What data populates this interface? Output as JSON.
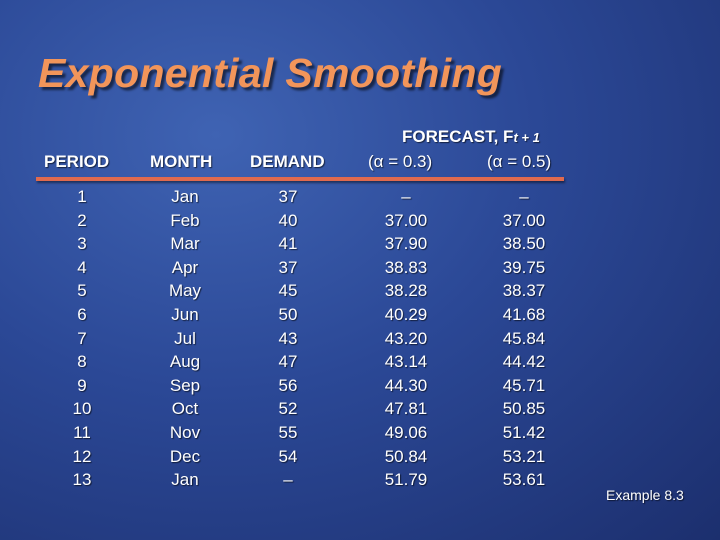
{
  "slide": {
    "title": "Exponential Smoothing",
    "footnote": "Example 8.3"
  },
  "table": {
    "headers": {
      "period": "PERIOD",
      "month": "MONTH",
      "demand": "DEMAND",
      "forecast_main": "FORECAST, F",
      "forecast_sub": "t + 1",
      "alpha_03": "(α = 0.3)",
      "alpha_05": "(α = 0.5)"
    },
    "rows": [
      {
        "period": "1",
        "month": "Jan",
        "demand": "37",
        "alpha_03": "–",
        "alpha_05": "–"
      },
      {
        "period": "2",
        "month": "Feb",
        "demand": "40",
        "alpha_03": "37.00",
        "alpha_05": "37.00"
      },
      {
        "period": "3",
        "month": "Mar",
        "demand": "41",
        "alpha_03": "37.90",
        "alpha_05": "38.50"
      },
      {
        "period": "4",
        "month": "Apr",
        "demand": "37",
        "alpha_03": "38.83",
        "alpha_05": "39.75"
      },
      {
        "period": "5",
        "month": "May",
        "demand": "45",
        "alpha_03": "38.28",
        "alpha_05": "38.37"
      },
      {
        "period": "6",
        "month": "Jun",
        "demand": "50",
        "alpha_03": "40.29",
        "alpha_05": "41.68"
      },
      {
        "period": "7",
        "month": "Jul",
        "demand": "43",
        "alpha_03": "43.20",
        "alpha_05": "45.84"
      },
      {
        "period": "8",
        "month": "Aug",
        "demand": "47",
        "alpha_03": "43.14",
        "alpha_05": "44.42"
      },
      {
        "period": "9",
        "month": "Sep",
        "demand": "56",
        "alpha_03": "44.30",
        "alpha_05": "45.71"
      },
      {
        "period": "10",
        "month": "Oct",
        "demand": "52",
        "alpha_03": "47.81",
        "alpha_05": "50.85"
      },
      {
        "period": "11",
        "month": "Nov",
        "demand": "55",
        "alpha_03": "49.06",
        "alpha_05": "51.42"
      },
      {
        "period": "12",
        "month": "Dec",
        "demand": "54",
        "alpha_03": "50.84",
        "alpha_05": "53.21"
      },
      {
        "period": "13",
        "month": "Jan",
        "demand": "–",
        "alpha_03": "51.79",
        "alpha_05": "53.61"
      }
    ]
  },
  "colors": {
    "title": "#f2955a",
    "rule": "#e06a4e",
    "background": "#2b4896",
    "text": "#ffffff"
  }
}
